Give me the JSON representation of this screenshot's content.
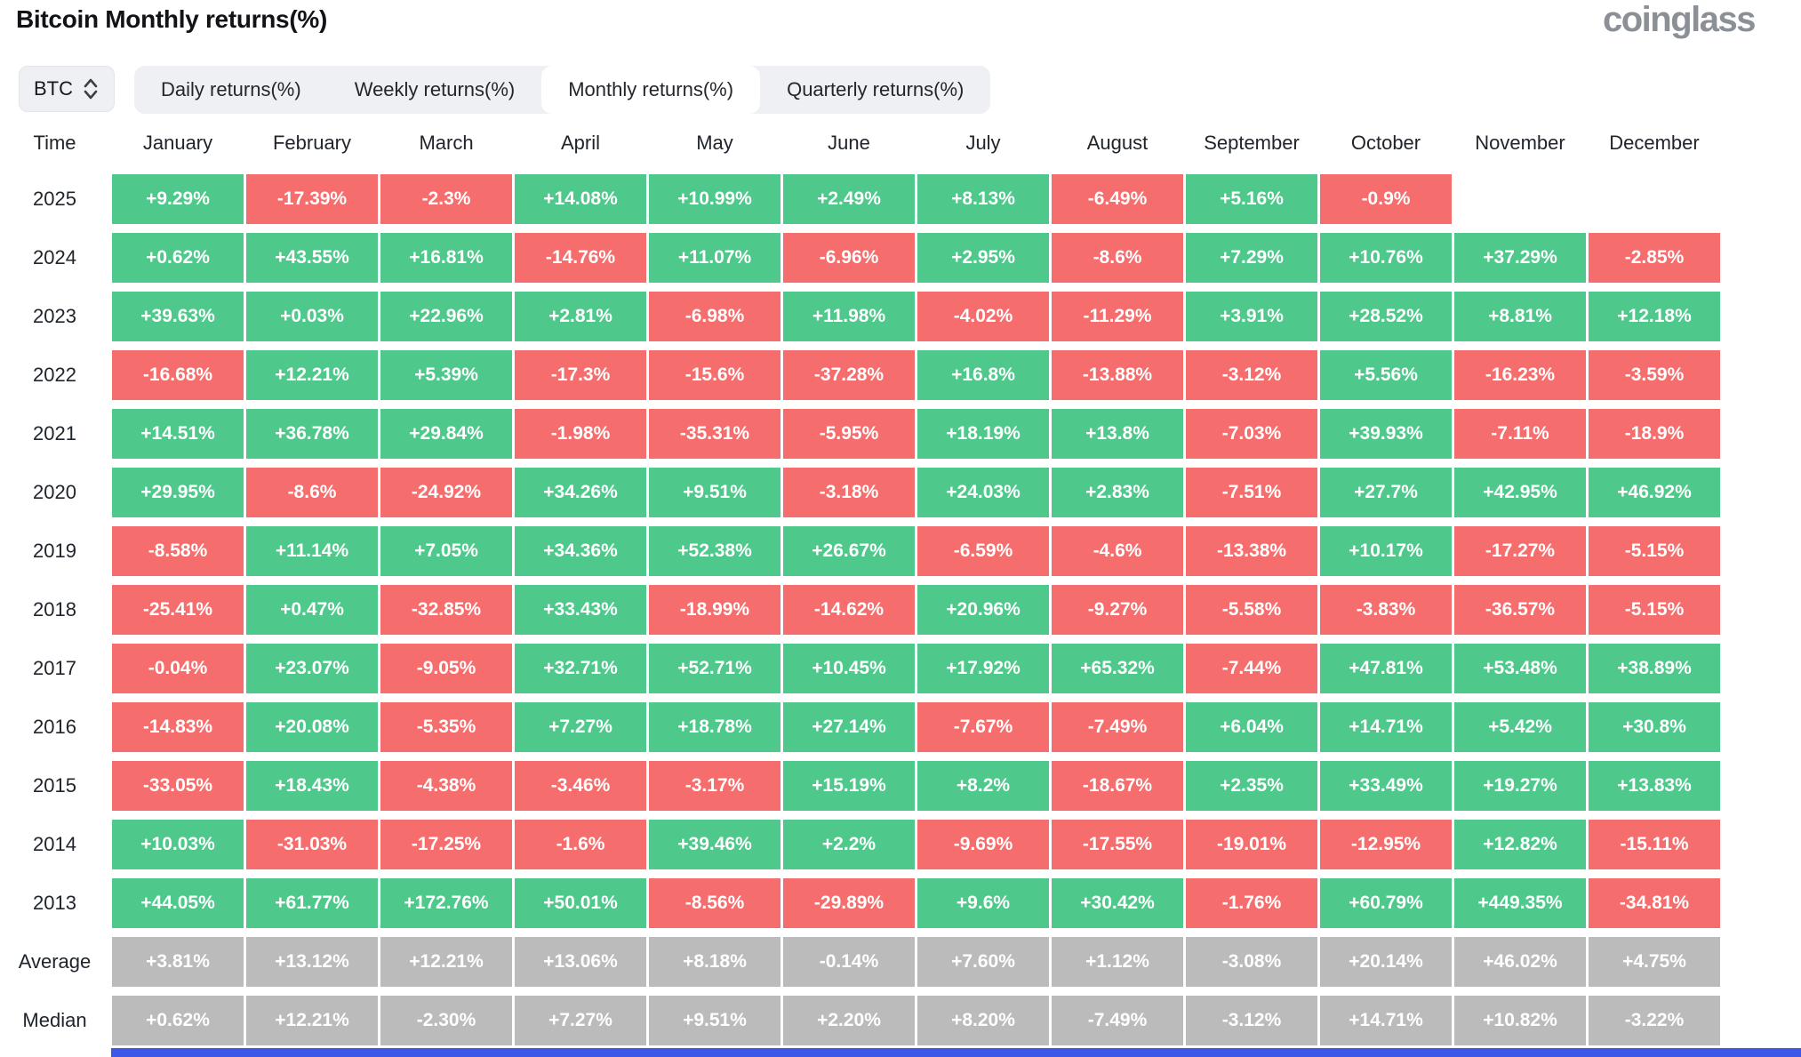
{
  "header": {
    "title": "Bitcoin Monthly returns(%)",
    "brand": "coinglass"
  },
  "controls": {
    "coin_selector": {
      "label": "BTC",
      "icon": "up-down-chevron-icon"
    },
    "tabs": [
      {
        "label": "Daily returns(%)",
        "active": false
      },
      {
        "label": "Weekly returns(%)",
        "active": false
      },
      {
        "label": "Monthly returns(%)",
        "active": true
      },
      {
        "label": "Quarterly returns(%)",
        "active": false
      }
    ]
  },
  "table": {
    "time_header": "Time",
    "months": [
      "January",
      "February",
      "March",
      "April",
      "May",
      "June",
      "July",
      "August",
      "September",
      "October",
      "November",
      "December"
    ],
    "rows": [
      {
        "time": "2025",
        "type": "year",
        "values": [
          "+9.29%",
          "-17.39%",
          "-2.3%",
          "+14.08%",
          "+10.99%",
          "+2.49%",
          "+8.13%",
          "-6.49%",
          "+5.16%",
          "-0.9%",
          null,
          null
        ]
      },
      {
        "time": "2024",
        "type": "year",
        "values": [
          "+0.62%",
          "+43.55%",
          "+16.81%",
          "-14.76%",
          "+11.07%",
          "-6.96%",
          "+2.95%",
          "-8.6%",
          "+7.29%",
          "+10.76%",
          "+37.29%",
          "-2.85%"
        ]
      },
      {
        "time": "2023",
        "type": "year",
        "values": [
          "+39.63%",
          "+0.03%",
          "+22.96%",
          "+2.81%",
          "-6.98%",
          "+11.98%",
          "-4.02%",
          "-11.29%",
          "+3.91%",
          "+28.52%",
          "+8.81%",
          "+12.18%"
        ]
      },
      {
        "time": "2022",
        "type": "year",
        "values": [
          "-16.68%",
          "+12.21%",
          "+5.39%",
          "-17.3%",
          "-15.6%",
          "-37.28%",
          "+16.8%",
          "-13.88%",
          "-3.12%",
          "+5.56%",
          "-16.23%",
          "-3.59%"
        ]
      },
      {
        "time": "2021",
        "type": "year",
        "values": [
          "+14.51%",
          "+36.78%",
          "+29.84%",
          "-1.98%",
          "-35.31%",
          "-5.95%",
          "+18.19%",
          "+13.8%",
          "-7.03%",
          "+39.93%",
          "-7.11%",
          "-18.9%"
        ]
      },
      {
        "time": "2020",
        "type": "year",
        "values": [
          "+29.95%",
          "-8.6%",
          "-24.92%",
          "+34.26%",
          "+9.51%",
          "-3.18%",
          "+24.03%",
          "+2.83%",
          "-7.51%",
          "+27.7%",
          "+42.95%",
          "+46.92%"
        ]
      },
      {
        "time": "2019",
        "type": "year",
        "values": [
          "-8.58%",
          "+11.14%",
          "+7.05%",
          "+34.36%",
          "+52.38%",
          "+26.67%",
          "-6.59%",
          "-4.6%",
          "-13.38%",
          "+10.17%",
          "-17.27%",
          "-5.15%"
        ]
      },
      {
        "time": "2018",
        "type": "year",
        "values": [
          "-25.41%",
          "+0.47%",
          "-32.85%",
          "+33.43%",
          "-18.99%",
          "-14.62%",
          "+20.96%",
          "-9.27%",
          "-5.58%",
          "-3.83%",
          "-36.57%",
          "-5.15%"
        ]
      },
      {
        "time": "2017",
        "type": "year",
        "values": [
          "-0.04%",
          "+23.07%",
          "-9.05%",
          "+32.71%",
          "+52.71%",
          "+10.45%",
          "+17.92%",
          "+65.32%",
          "-7.44%",
          "+47.81%",
          "+53.48%",
          "+38.89%"
        ]
      },
      {
        "time": "2016",
        "type": "year",
        "values": [
          "-14.83%",
          "+20.08%",
          "-5.35%",
          "+7.27%",
          "+18.78%",
          "+27.14%",
          "-7.67%",
          "-7.49%",
          "+6.04%",
          "+14.71%",
          "+5.42%",
          "+30.8%"
        ]
      },
      {
        "time": "2015",
        "type": "year",
        "values": [
          "-33.05%",
          "+18.43%",
          "-4.38%",
          "-3.46%",
          "-3.17%",
          "+15.19%",
          "+8.2%",
          "-18.67%",
          "+2.35%",
          "+33.49%",
          "+19.27%",
          "+13.83%"
        ]
      },
      {
        "time": "2014",
        "type": "year",
        "values": [
          "+10.03%",
          "-31.03%",
          "-17.25%",
          "-1.6%",
          "+39.46%",
          "+2.2%",
          "-9.69%",
          "-17.55%",
          "-19.01%",
          "-12.95%",
          "+12.82%",
          "-15.11%"
        ]
      },
      {
        "time": "2013",
        "type": "year",
        "values": [
          "+44.05%",
          "+61.77%",
          "+172.76%",
          "+50.01%",
          "-8.56%",
          "-29.89%",
          "+9.6%",
          "+30.42%",
          "-1.76%",
          "+60.79%",
          "+449.35%",
          "-34.81%"
        ]
      },
      {
        "time": "Average",
        "type": "summary",
        "values": [
          "+3.81%",
          "+13.12%",
          "+12.21%",
          "+13.06%",
          "+8.18%",
          "-0.14%",
          "+7.60%",
          "+1.12%",
          "-3.08%",
          "+20.14%",
          "+46.02%",
          "+4.75%"
        ]
      },
      {
        "time": "Median",
        "type": "summary",
        "values": [
          "+0.62%",
          "+12.21%",
          "-2.30%",
          "+7.27%",
          "+9.51%",
          "+2.20%",
          "+8.20%",
          "-7.49%",
          "-3.12%",
          "+14.71%",
          "+10.82%",
          "-3.22%"
        ]
      }
    ]
  },
  "colors": {
    "positive": "#4EC98B",
    "negative": "#F56D6D",
    "summary": "#BBBBBB",
    "accent_strip": "#3D57E8"
  }
}
